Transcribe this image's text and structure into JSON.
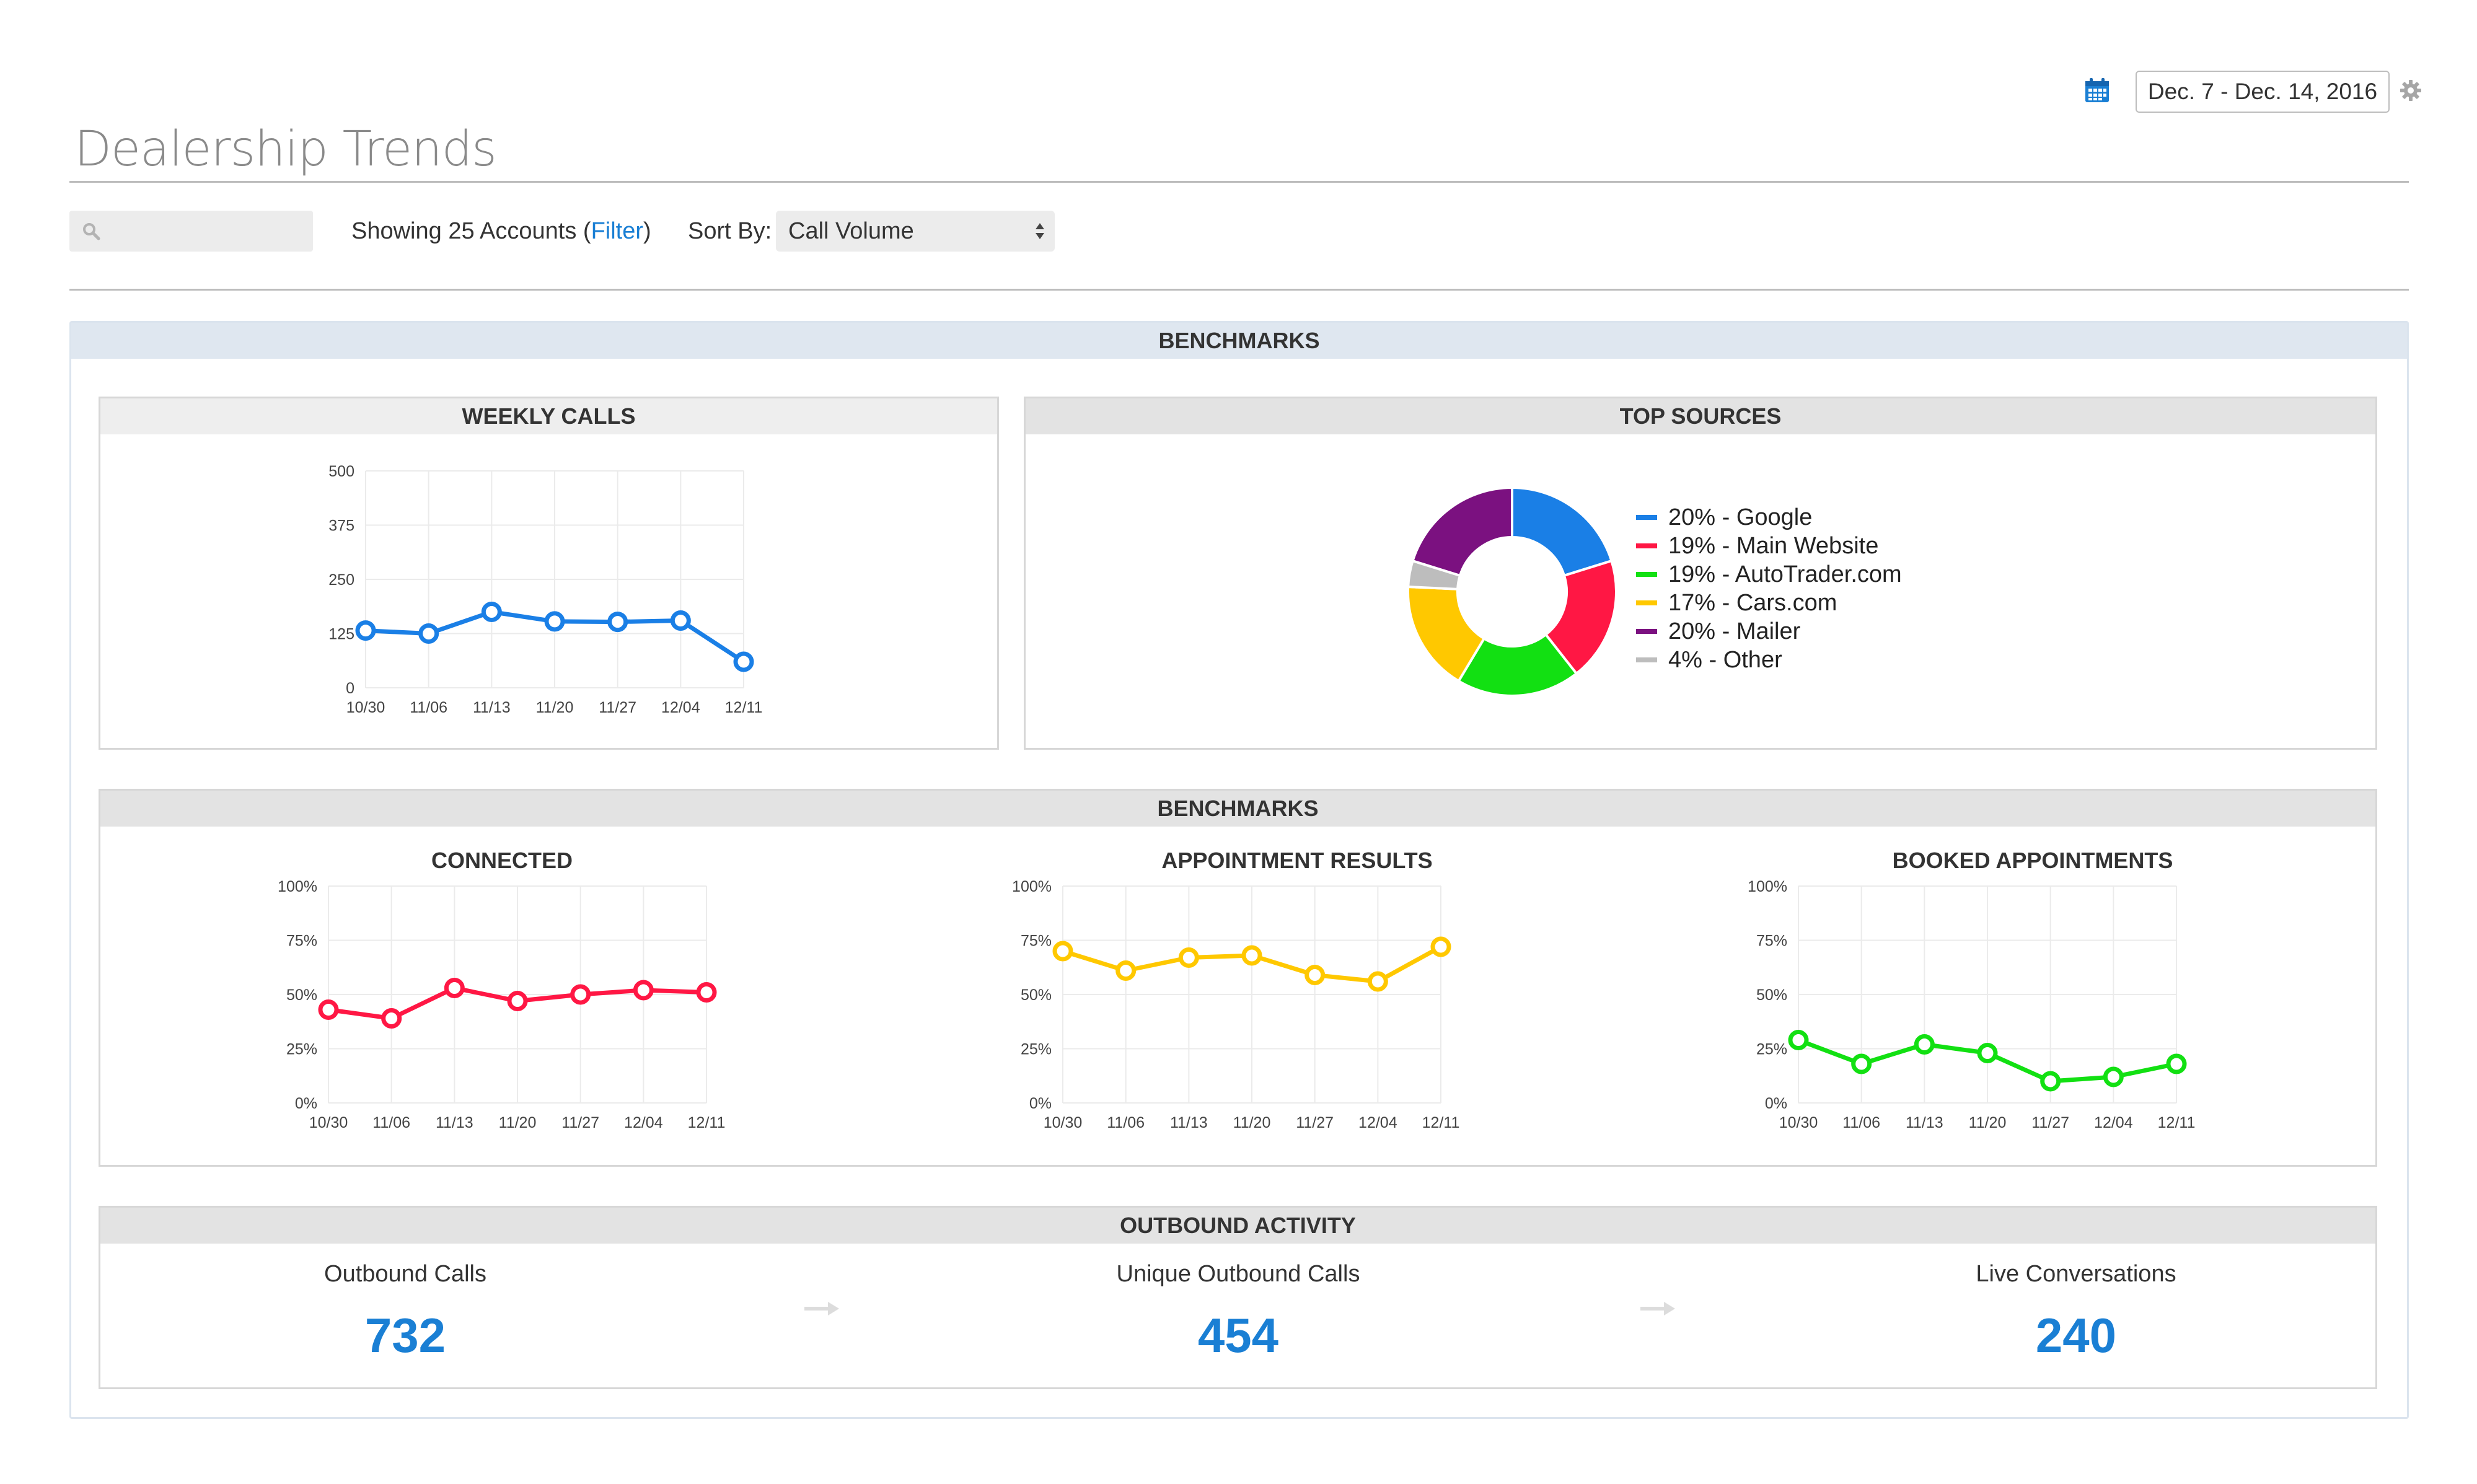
{
  "header": {
    "date_range": "Dec. 7 - Dec. 14, 2016",
    "title": "Dealership Trends"
  },
  "toolbar": {
    "search": {
      "placeholder": "",
      "value": ""
    },
    "showing_prefix": "Showing 25 Accounts (",
    "filter_label": "Filter",
    "showing_suffix": ")",
    "sort_label": "Sort By:",
    "sort_value": "Call Volume"
  },
  "outer_panel": {
    "title": "BENCHMARKS"
  },
  "weekly_calls": {
    "title": "WEEKLY CALLS"
  },
  "top_sources": {
    "title": "TOP SOURCES"
  },
  "benchmarks": {
    "title": "BENCHMARKS"
  },
  "outbound": {
    "title": "OUTBOUND ACTIVITY",
    "metrics": [
      {
        "label": "Outbound Calls",
        "value": "732"
      },
      {
        "label": "Unique Outbound Calls",
        "value": "454"
      },
      {
        "label": "Live Conversations",
        "value": "240"
      }
    ]
  },
  "colors": {
    "accent": "#1a7fd4",
    "google": "#1a7fe6",
    "main_website": "#ff1744",
    "autotrader": "#12e012",
    "cars": "#ffc800",
    "mailer": "#7b1180",
    "other": "#bdbdbd"
  },
  "chart_data": [
    {
      "id": "weekly",
      "type": "line",
      "title": "WEEKLY CALLS",
      "x": [
        "10/30",
        "11/06",
        "11/13",
        "11/20",
        "11/27",
        "12/04",
        "12/11"
      ],
      "series": [
        {
          "values": [
            132,
            125,
            175,
            153,
            152,
            155,
            60
          ],
          "color": "#1a7fe6"
        }
      ],
      "yticks": [
        "0",
        "125",
        "250",
        "375",
        "500"
      ],
      "ylim": [
        0,
        500
      ],
      "grid": true
    },
    {
      "id": "sources",
      "type": "pie",
      "title": "TOP SOURCES",
      "slices": [
        {
          "name": "Google",
          "value": 20,
          "label": "20% - Google",
          "color": "#1a7fe6"
        },
        {
          "name": "Main Website",
          "value": 19,
          "label": "19% - Main Website",
          "color": "#ff1744"
        },
        {
          "name": "AutoTrader.com",
          "value": 19,
          "label": "19% - AutoTrader.com",
          "color": "#12e012"
        },
        {
          "name": "Cars.com",
          "value": 17,
          "label": "17% - Cars.com",
          "color": "#ffc800"
        },
        {
          "name": "Other",
          "value": 4,
          "label": "4% - Other",
          "color": "#bdbdbd"
        },
        {
          "name": "Mailer",
          "value": 20,
          "label": "20% - Mailer",
          "color": "#7b1180"
        }
      ],
      "legend_order": [
        "Google",
        "Main Website",
        "AutoTrader.com",
        "Cars.com",
        "Mailer",
        "Other"
      ],
      "legend": "right"
    },
    {
      "id": "connected",
      "type": "line",
      "title": "CONNECTED",
      "x": [
        "10/30",
        "11/06",
        "11/13",
        "11/20",
        "11/27",
        "12/04",
        "12/11"
      ],
      "series": [
        {
          "values": [
            43,
            39,
            53,
            47,
            50,
            52,
            51
          ],
          "color": "#ff1744"
        }
      ],
      "yticks": [
        "0%",
        "25%",
        "50%",
        "75%",
        "100%"
      ],
      "ylim": [
        0,
        100
      ],
      "grid": true
    },
    {
      "id": "appointment",
      "type": "line",
      "title": "APPOINTMENT RESULTS",
      "x": [
        "10/30",
        "11/06",
        "11/13",
        "11/20",
        "11/27",
        "12/04",
        "12/11"
      ],
      "series": [
        {
          "values": [
            70,
            61,
            67,
            68,
            59,
            56,
            72
          ],
          "color": "#ffc800"
        }
      ],
      "yticks": [
        "0%",
        "25%",
        "50%",
        "75%",
        "100%"
      ],
      "ylim": [
        0,
        100
      ],
      "grid": true
    },
    {
      "id": "booked",
      "type": "line",
      "title": "BOOKED APPOINTMENTS",
      "x": [
        "10/30",
        "11/06",
        "11/13",
        "11/20",
        "11/27",
        "12/04",
        "12/11"
      ],
      "series": [
        {
          "values": [
            29,
            18,
            27,
            23,
            10,
            12,
            18
          ],
          "color": "#12e012"
        }
      ],
      "yticks": [
        "0%",
        "25%",
        "50%",
        "75%",
        "100%"
      ],
      "ylim": [
        0,
        100
      ],
      "grid": true
    }
  ]
}
